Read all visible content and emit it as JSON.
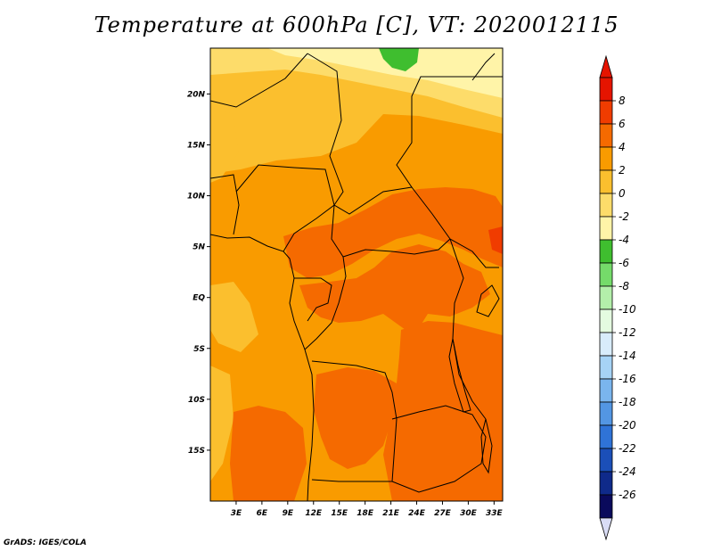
{
  "title": "Temperature at 600hPa [C], VT: 2020012115",
  "footer": "GrADS: IGES/COLA",
  "map": {
    "lon_range": [
      0,
      34
    ],
    "lat_range": [
      -20,
      24.5
    ],
    "x_ticks": [
      "3E",
      "6E",
      "9E",
      "12E",
      "15E",
      "18E",
      "21E",
      "24E",
      "27E",
      "30E",
      "33E"
    ],
    "x_tick_values": [
      3,
      6,
      9,
      12,
      15,
      18,
      21,
      24,
      27,
      30,
      33
    ],
    "y_ticks": [
      "20N",
      "15N",
      "10N",
      "5N",
      "EQ",
      "5S",
      "10S",
      "15S"
    ],
    "y_tick_values": [
      20,
      15,
      10,
      5,
      0,
      -5,
      -10,
      -15
    ]
  },
  "colorbar": {
    "labels": [
      "8",
      "6",
      "4",
      "2",
      "0",
      "-2",
      "-4",
      "-6",
      "-8",
      "-10",
      "-12",
      "-14",
      "-16",
      "-18",
      "-20",
      "-22",
      "-24",
      "-26"
    ],
    "colors": [
      "#e51400",
      "#f03c00",
      "#f56a00",
      "#f99b00",
      "#fbbf2e",
      "#fddc6a",
      "#fff4a8",
      "#3fbe2f",
      "#75db6a",
      "#b3efaa",
      "#e4fbe0",
      "#d8ecfb",
      "#a6d3f6",
      "#7ab5ee",
      "#5396e3",
      "#2f73d7",
      "#1b4fb8",
      "#0f2a8a",
      "#0a0a5c"
    ],
    "arrow_top_color": "#e51400",
    "arrow_bottom_color": "#d9dcf5"
  }
}
